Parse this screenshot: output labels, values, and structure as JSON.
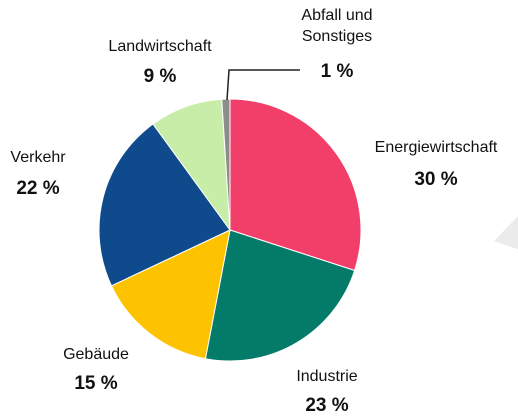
{
  "chart_data": {
    "type": "pie",
    "categories": [
      "Energiewirtschaft",
      "Industrie",
      "Gebäude",
      "Verkehr",
      "Landwirtschaft",
      "Abfall und Sonstiges"
    ],
    "values": [
      30,
      23,
      15,
      22,
      9,
      1
    ],
    "value_labels": [
      "30 %",
      "23 %",
      "15 %",
      "22 %",
      "9 %",
      "1 %"
    ],
    "colors": [
      "#f23f69",
      "#047a69",
      "#fdc300",
      "#0e4a8c",
      "#c8eda8",
      "#8c8c8c"
    ]
  }
}
